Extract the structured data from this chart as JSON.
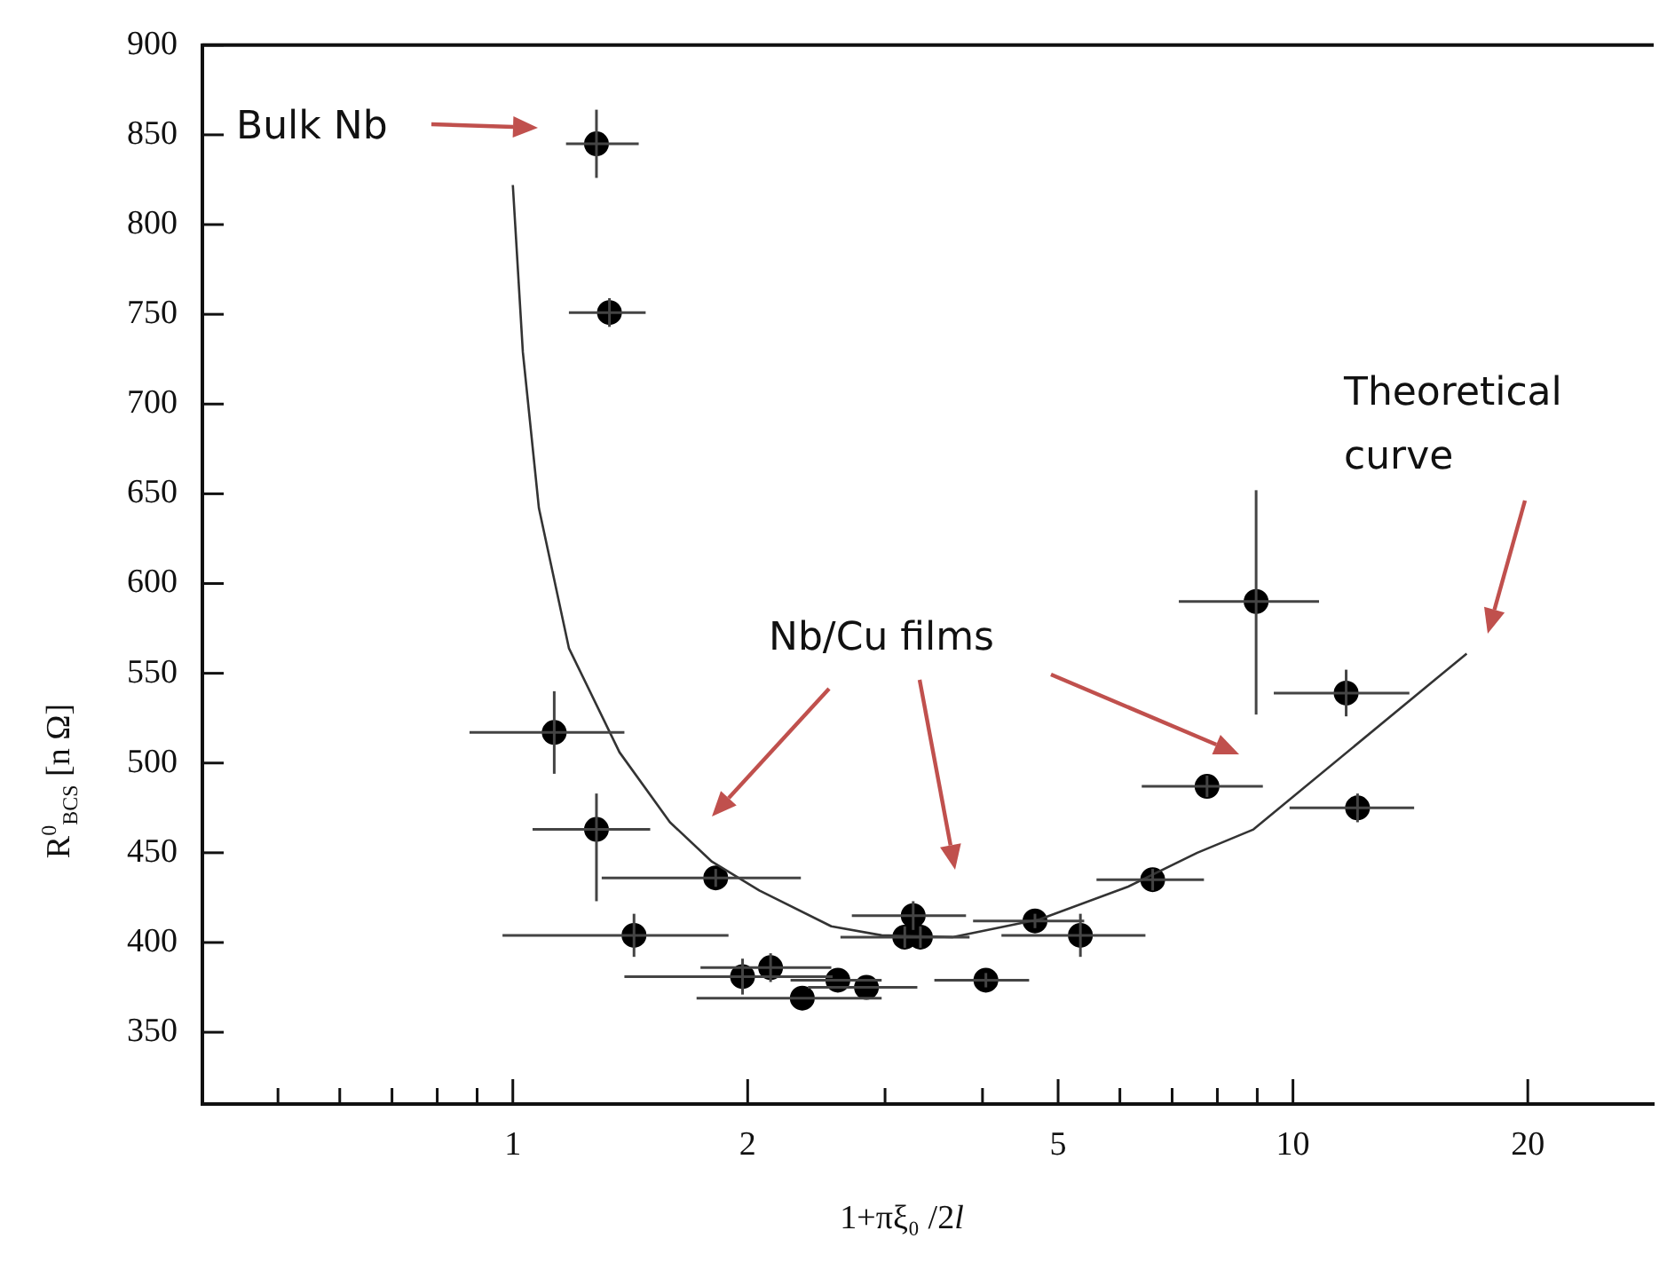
{
  "chart_data": {
    "type": "scatter",
    "xlabel": "1+πξ₀ /2l",
    "ylabel": "R$^{0}$$_{BCS}$ [n Ω]",
    "annotations": [
      "Bulk Nb",
      "Nb/Cu films",
      "Theoretical curve"
    ],
    "log": "x",
    "grid": false,
    "legend": false,
    "xlim": [
      0.4,
      29
    ],
    "ylim": [
      310,
      900
    ],
    "xticks": [
      {
        "value": 0.5,
        "label": null
      },
      {
        "value": 0.6,
        "label": null
      },
      {
        "value": 0.7,
        "label": null
      },
      {
        "value": 0.8,
        "label": null
      },
      {
        "value": 0.9,
        "label": null
      },
      1,
      2,
      {
        "value": 3,
        "label": null
      },
      {
        "value": 4,
        "label": null
      },
      5,
      {
        "value": 6,
        "label": null
      },
      {
        "value": 7,
        "label": null
      },
      {
        "value": 8,
        "label": null
      },
      {
        "value": 9,
        "label": null
      },
      10,
      20
    ],
    "yticks": [
      350,
      400,
      450,
      500,
      550,
      600,
      650,
      700,
      750,
      800,
      850,
      900
    ],
    "series": [
      {
        "color": "#000000",
        "marker": "circle",
        "x": [
          1.28,
          1.33,
          1.13,
          1.28,
          1.82,
          1.43,
          1.97,
          2.14,
          2.35,
          2.61,
          2.84,
          3.26,
          3.18,
          3.33,
          4.04,
          4.67,
          5.34,
          6.61,
          7.76,
          8.97,
          11.7,
          12.1
        ],
        "values": [
          845,
          751,
          517,
          463,
          436,
          404,
          381,
          386,
          369,
          379,
          375,
          415,
          403,
          403,
          379,
          412,
          404,
          435,
          487,
          590,
          539,
          475
        ],
        "errors": [
          19,
          8,
          23,
          [
            423,
            483
          ],
          5,
          12,
          10,
          8,
          null,
          null,
          null,
          8,
          6,
          6,
          4,
          4,
          12,
          6,
          6,
          [
            527,
            652
          ],
          13,
          8
        ],
        "xerrors": [
          [
            1.17,
            1.45
          ],
          [
            1.18,
            1.48
          ],
          [
            0.88,
            1.39
          ],
          [
            1.06,
            1.5
          ],
          [
            1.3,
            2.34
          ],
          [
            0.97,
            1.89
          ],
          [
            1.39,
            2.57
          ],
          [
            1.74,
            2.56
          ],
          [
            1.72,
            2.97
          ],
          [
            2.27,
            2.97
          ],
          [
            2.39,
            3.3
          ],
          [
            2.72,
            3.81
          ],
          [
            2.63,
            3.85
          ],
          null,
          [
            3.47,
            4.59
          ],
          [
            3.89,
            5.4
          ],
          [
            4.23,
            6.47
          ],
          [
            5.6,
            7.69
          ],
          [
            6.4,
            9.15
          ],
          [
            7.14,
            10.8
          ],
          [
            9.45,
            14.1
          ],
          [
            9.9,
            14.3
          ]
        ]
      },
      {
        "type": "line",
        "color": "#333333",
        "marker": "none",
        "x": [
          1.0,
          1.03,
          1.08,
          1.18,
          1.37,
          1.59,
          1.8,
          2.07,
          2.56,
          2.97,
          3.66,
          4.74,
          6.14,
          7.54,
          8.9,
          16.7
        ],
        "values": [
          822,
          729,
          642,
          564,
          506,
          467,
          445,
          429,
          409,
          404,
          403,
          413,
          431,
          450,
          463,
          561
        ]
      }
    ]
  }
}
